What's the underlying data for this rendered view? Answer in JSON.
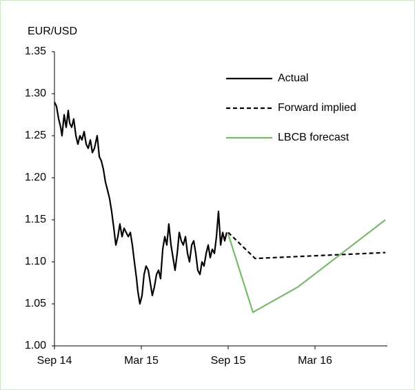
{
  "chart_data": {
    "type": "line",
    "ylabel": "EUR/USD",
    "xlim": [
      0,
      23
    ],
    "xticks": [
      {
        "value": 0,
        "label": "Sep 14"
      },
      {
        "value": 6,
        "label": "Mar 15"
      },
      {
        "value": 12,
        "label": "Sep 15"
      },
      {
        "value": 18,
        "label": "Mar 16"
      }
    ],
    "ylim": [
      1,
      1.35
    ],
    "yticks": [
      {
        "value": 1,
        "label": "1.00"
      },
      1.05,
      {
        "value": 1.1,
        "label": "1.10"
      },
      1.15,
      {
        "value": 1.2,
        "label": "1.20"
      },
      1.25,
      {
        "value": 1.3,
        "label": "1.30"
      },
      1.35
    ],
    "legend": "upper right",
    "series": [
      {
        "name": "Actual",
        "color": "#000000",
        "dashed": false,
        "x": [
          0,
          0.14,
          0.29,
          0.43,
          0.52,
          0.67,
          0.81,
          0.95,
          1.05,
          1.19,
          1.33,
          1.48,
          1.62,
          1.76,
          1.9,
          2.05,
          2.19,
          2.33,
          2.48,
          2.62,
          2.76,
          2.95,
          3.1,
          3.24,
          3.38,
          3.52,
          3.67,
          3.81,
          3.95,
          4.1,
          4.24,
          4.38,
          4.52,
          4.67,
          4.81,
          4.95,
          5.1,
          5.24,
          5.38,
          5.52,
          5.67,
          5.76,
          5.9,
          6.05,
          6.19,
          6.33,
          6.48,
          6.62,
          6.76,
          6.9,
          7.05,
          7.19,
          7.33,
          7.48,
          7.62,
          7.76,
          7.9,
          8.05,
          8.19,
          8.33,
          8.48,
          8.62,
          8.76,
          8.9,
          9.05,
          9.19,
          9.33,
          9.48,
          9.62,
          9.76,
          9.9,
          10.05,
          10.19,
          10.33,
          10.48,
          10.62,
          10.76,
          10.9,
          11.05,
          11.19,
          11.33,
          11.48,
          11.62,
          11.76,
          11.9
        ],
        "values": [
          1.29,
          1.285,
          1.27,
          1.26,
          1.25,
          1.275,
          1.26,
          1.28,
          1.265,
          1.26,
          1.27,
          1.25,
          1.24,
          1.25,
          1.245,
          1.255,
          1.24,
          1.235,
          1.245,
          1.23,
          1.235,
          1.25,
          1.225,
          1.22,
          1.21,
          1.195,
          1.185,
          1.175,
          1.16,
          1.14,
          1.12,
          1.13,
          1.145,
          1.13,
          1.14,
          1.135,
          1.13,
          1.135,
          1.12,
          1.1,
          1.08,
          1.065,
          1.05,
          1.06,
          1.085,
          1.095,
          1.09,
          1.075,
          1.06,
          1.07,
          1.085,
          1.09,
          1.08,
          1.115,
          1.13,
          1.12,
          1.145,
          1.12,
          1.105,
          1.09,
          1.11,
          1.135,
          1.125,
          1.12,
          1.13,
          1.11,
          1.1,
          1.12,
          1.125,
          1.11,
          1.09,
          1.085,
          1.1,
          1.095,
          1.11,
          1.12,
          1.105,
          1.115,
          1.11,
          1.13,
          1.16,
          1.12,
          1.135,
          1.125,
          1.135
        ]
      },
      {
        "name": "Forward implied",
        "color": "#000000",
        "dashed": true,
        "x": [
          12,
          13.86,
          22.86
        ],
        "values": [
          1.135,
          1.104,
          1.111
        ]
      },
      {
        "name": "LBCB forecast",
        "color": "#7ab86a",
        "dashed": false,
        "x": [
          12,
          13.71,
          16.81,
          22.86
        ],
        "values": [
          1.133,
          1.04,
          1.07,
          1.15
        ]
      }
    ]
  }
}
